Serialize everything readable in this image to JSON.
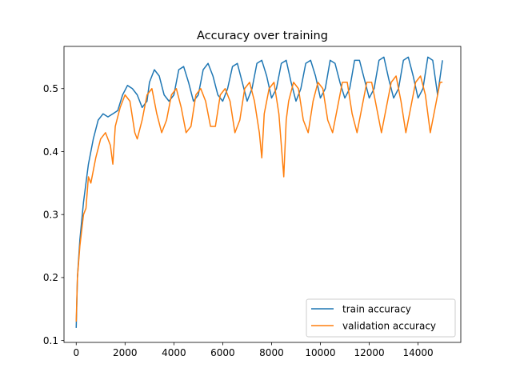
{
  "chart_data": {
    "type": "line",
    "title": "Accuracy over training",
    "xlabel": "",
    "ylabel": "",
    "xlim": [
      -500,
      15750
    ],
    "ylim": [
      0.097,
      0.567
    ],
    "xticks": [
      0,
      2000,
      4000,
      6000,
      8000,
      10000,
      12000,
      14000
    ],
    "xtick_labels": [
      "0",
      "2000",
      "4000",
      "6000",
      "8000",
      "10000",
      "12000",
      "14000"
    ],
    "yticks": [
      0.1,
      0.2,
      0.3,
      0.4,
      0.5
    ],
    "ytick_labels": [
      "0.1",
      "0.2",
      "0.3",
      "0.4",
      "0.5"
    ],
    "grid": false,
    "legend_position": "lower-right",
    "series": [
      {
        "name": "train accuracy",
        "color": "#1f77b4",
        "x": [
          0,
          50,
          150,
          300,
          500,
          700,
          900,
          1100,
          1300,
          1500,
          1700,
          1900,
          2100,
          2300,
          2500,
          2700,
          2900,
          3000,
          3200,
          3400,
          3600,
          3800,
          4000,
          4200,
          4400,
          4600,
          4800,
          5000,
          5200,
          5400,
          5600,
          5800,
          6000,
          6200,
          6400,
          6600,
          6800,
          7000,
          7200,
          7400,
          7600,
          7800,
          8000,
          8200,
          8400,
          8600,
          8800,
          9000,
          9200,
          9400,
          9600,
          9800,
          10000,
          10200,
          10400,
          10600,
          10800,
          11000,
          11200,
          11400,
          11600,
          11800,
          12000,
          12200,
          12400,
          12600,
          12800,
          13000,
          13200,
          13400,
          13600,
          13800,
          14000,
          14200,
          14400,
          14600,
          14800,
          15000
        ],
        "y": [
          0.12,
          0.2,
          0.26,
          0.32,
          0.38,
          0.42,
          0.45,
          0.46,
          0.455,
          0.46,
          0.465,
          0.49,
          0.505,
          0.5,
          0.49,
          0.47,
          0.48,
          0.51,
          0.53,
          0.52,
          0.49,
          0.48,
          0.49,
          0.53,
          0.535,
          0.51,
          0.48,
          0.49,
          0.53,
          0.54,
          0.52,
          0.49,
          0.48,
          0.5,
          0.535,
          0.54,
          0.51,
          0.48,
          0.5,
          0.54,
          0.545,
          0.52,
          0.485,
          0.5,
          0.54,
          0.545,
          0.51,
          0.48,
          0.5,
          0.54,
          0.545,
          0.52,
          0.485,
          0.5,
          0.545,
          0.54,
          0.51,
          0.485,
          0.5,
          0.545,
          0.545,
          0.515,
          0.485,
          0.5,
          0.545,
          0.55,
          0.515,
          0.485,
          0.5,
          0.545,
          0.55,
          0.52,
          0.485,
          0.5,
          0.55,
          0.545,
          0.49,
          0.545
        ]
      },
      {
        "name": "validation accuracy",
        "color": "#ff7f0e",
        "x": [
          0,
          50,
          150,
          300,
          400,
          500,
          600,
          800,
          1000,
          1200,
          1400,
          1500,
          1600,
          1800,
          2000,
          2200,
          2400,
          2500,
          2700,
          2900,
          3100,
          3300,
          3500,
          3700,
          3900,
          4100,
          4300,
          4500,
          4700,
          4900,
          5100,
          5300,
          5500,
          5700,
          5900,
          6100,
          6300,
          6500,
          6700,
          6900,
          7100,
          7300,
          7500,
          7600,
          7700,
          7900,
          8100,
          8300,
          8500,
          8600,
          8700,
          8900,
          9100,
          9300,
          9500,
          9700,
          9900,
          10100,
          10300,
          10500,
          10700,
          10900,
          11100,
          11300,
          11500,
          11700,
          11900,
          12100,
          12300,
          12500,
          12700,
          12900,
          13100,
          13300,
          13500,
          13700,
          13900,
          14100,
          14300,
          14500,
          14700,
          14900,
          15000
        ],
        "y": [
          0.13,
          0.2,
          0.25,
          0.3,
          0.31,
          0.36,
          0.35,
          0.39,
          0.42,
          0.43,
          0.41,
          0.38,
          0.44,
          0.47,
          0.49,
          0.48,
          0.43,
          0.42,
          0.45,
          0.49,
          0.5,
          0.46,
          0.43,
          0.45,
          0.49,
          0.5,
          0.47,
          0.43,
          0.44,
          0.49,
          0.5,
          0.48,
          0.44,
          0.44,
          0.49,
          0.5,
          0.48,
          0.43,
          0.45,
          0.5,
          0.51,
          0.48,
          0.43,
          0.39,
          0.46,
          0.5,
          0.51,
          0.46,
          0.36,
          0.45,
          0.48,
          0.51,
          0.5,
          0.45,
          0.43,
          0.48,
          0.51,
          0.5,
          0.45,
          0.43,
          0.47,
          0.51,
          0.51,
          0.46,
          0.43,
          0.47,
          0.51,
          0.51,
          0.47,
          0.43,
          0.47,
          0.51,
          0.52,
          0.48,
          0.43,
          0.47,
          0.51,
          0.52,
          0.49,
          0.43,
          0.47,
          0.51,
          0.51
        ]
      }
    ]
  }
}
